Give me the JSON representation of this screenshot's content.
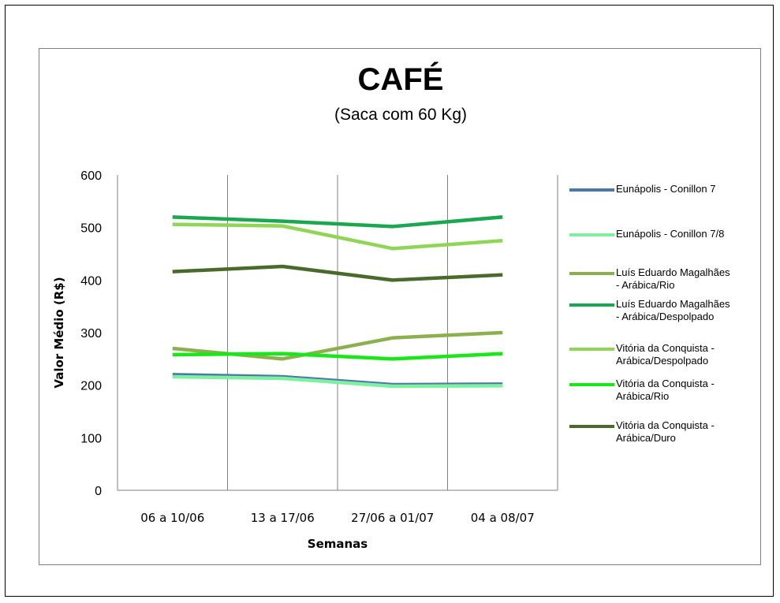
{
  "chart_data": {
    "type": "line",
    "title": "CAFÉ",
    "subtitle": "(Saca com 60 Kg)",
    "xlabel": "Semanas",
    "ylabel": "Valor Médio (R$)",
    "ylim": [
      0,
      600
    ],
    "yticks": [
      "0",
      "100",
      "200",
      "300",
      "400",
      "500",
      "600"
    ],
    "categories": [
      "06 a 10/06",
      "13 a 17/06",
      "27/06 a 01/07",
      "04 a 08/07"
    ],
    "grid": "vertical",
    "legend_position": "right",
    "series": [
      {
        "name": "Eunápolis - Conillon 7",
        "color": "#4a78a8",
        "values": [
          220,
          216,
          201,
          202
        ]
      },
      {
        "name": "Eunápolis - Conillon 7/8",
        "color": "#7ef0a0",
        "values": [
          216,
          213,
          198,
          199
        ]
      },
      {
        "name": "Luís Eduardo Magalhães\n- Arábica/Rio",
        "color": "#8db04e",
        "values": [
          270,
          250,
          290,
          300
        ]
      },
      {
        "name": "Luís Eduardo Magalhães\n- Arábica/Despolpado",
        "color": "#1aa84e",
        "values": [
          520,
          512,
          502,
          520
        ]
      },
      {
        "name": "Vitória da Conquista -\nArábica/Despolpado",
        "color": "#8fd657",
        "values": [
          506,
          503,
          460,
          475
        ]
      },
      {
        "name": "Vitória da Conquista -\nArábica/Rio",
        "color": "#18e818",
        "values": [
          258,
          260,
          250,
          260
        ]
      },
      {
        "name": "Vitória da Conquista -\nArábica/Duro",
        "color": "#4a6a2c",
        "values": [
          416,
          426,
          400,
          410
        ]
      }
    ]
  }
}
